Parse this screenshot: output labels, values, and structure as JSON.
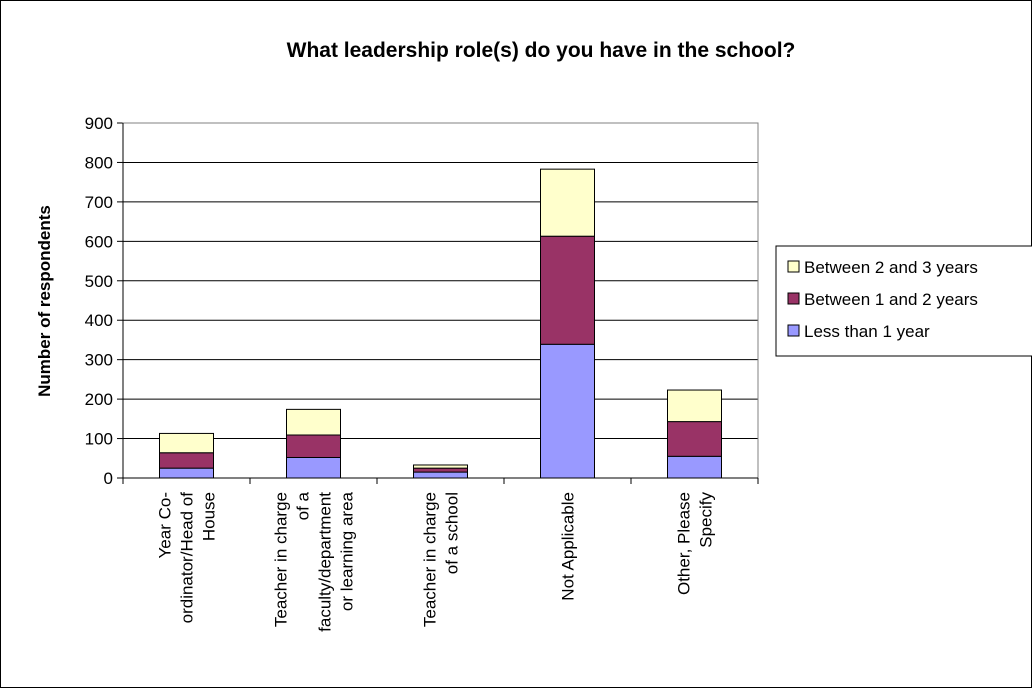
{
  "chart_data": {
    "type": "bar",
    "stacked": true,
    "title": "What leadership role(s) do you have in the school?",
    "xlabel": "",
    "ylabel": "Number of respondents",
    "ylim": [
      0,
      900
    ],
    "yticks": [
      0,
      100,
      200,
      300,
      400,
      500,
      600,
      700,
      800,
      900
    ],
    "grid": true,
    "legend_position": "right",
    "categories": [
      [
        "Year Co-",
        "ordinator/Head of",
        "House"
      ],
      [
        "Teacher in charge",
        "of a",
        "faculty/department",
        "or learning area"
      ],
      [
        "Teacher in charge",
        "of a school"
      ],
      [
        "Not Applicable"
      ],
      [
        "Other, Please",
        "Specify"
      ]
    ],
    "series": [
      {
        "name": "Less than 1 year",
        "color": "#9999FF",
        "values": [
          25,
          52,
          15,
          339,
          55
        ]
      },
      {
        "name": "Between 1 and 2 years",
        "color": "#993366",
        "values": [
          39,
          57,
          10,
          274,
          88
        ]
      },
      {
        "name": "Between 2 and 3 years",
        "color": "#FFFFCC",
        "values": [
          49,
          65,
          8,
          170,
          80
        ]
      }
    ],
    "legend_order": [
      "Between 2 and 3 years",
      "Between 1 and 2 years",
      "Less than 1 year"
    ]
  }
}
